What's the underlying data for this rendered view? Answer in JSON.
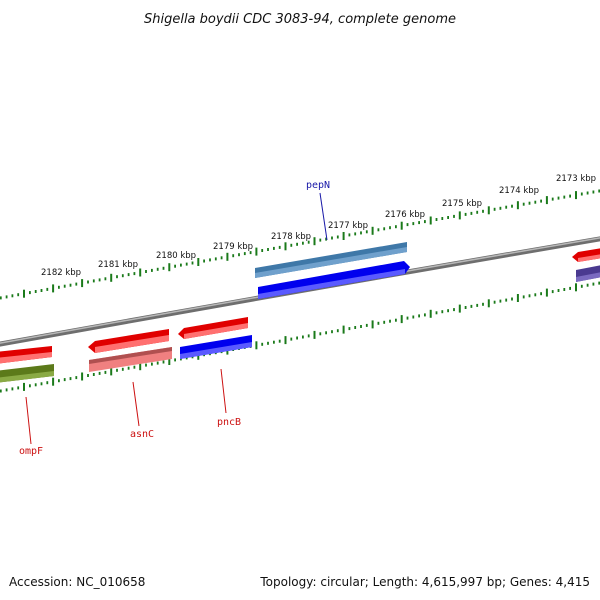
{
  "title": "Shigella boydii CDC 3083-94, complete genome",
  "footer": {
    "accession": "Accession: NC_010658",
    "topology": "Topology: circular; Length: 4,615,997 bp; Genes: 4,415"
  },
  "ticks": [
    {
      "label": "2173 kbp"
    },
    {
      "label": "2174 kbp"
    },
    {
      "label": "2175 kbp"
    },
    {
      "label": "2176 kbp"
    },
    {
      "label": "2177 kbp"
    },
    {
      "label": "2178 kbp"
    },
    {
      "label": "2179 kbp"
    },
    {
      "label": "2180 kbp"
    },
    {
      "label": "2181 kbp"
    },
    {
      "label": "2182 kbp"
    }
  ],
  "genes": [
    {
      "name": "pepN",
      "color": "#1a1aa8"
    },
    {
      "name": "pncB",
      "color": "#cc1111"
    },
    {
      "name": "asnC",
      "color": "#cc1111"
    },
    {
      "name": "ompF",
      "color": "#cc1111"
    }
  ],
  "colors": {
    "backbone": "#7a7a7a",
    "ticks": "#1a7a1a",
    "forward_feature": "#e00000",
    "reverse_feature": "#0000ee",
    "light_red": "#f08080",
    "steel_blue": "#3f78a8",
    "olive": "#5c7a1a",
    "purple": "#4a3a90"
  }
}
